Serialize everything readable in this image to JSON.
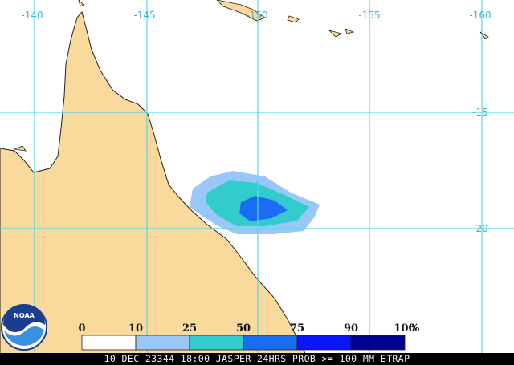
{
  "map": {
    "lon_labels": [
      "-140",
      "-145",
      "-150",
      "-155",
      "-160"
    ],
    "lat_labels": [
      "-15",
      "-20"
    ],
    "legend": {
      "labels": [
        "0",
        "10",
        "25",
        "50",
        "75",
        "90",
        "100"
      ],
      "unit": "%",
      "colors": [
        "#ffffff",
        "#99c8f8",
        "#33cccc",
        "#1a6cf5",
        "#0a14ff",
        "#00008f"
      ]
    },
    "logo_text": "NOAA",
    "footer": "10 DEC 23344 18:00 JASPER 24HRS PROB >= 100 MM ETRAP"
  }
}
